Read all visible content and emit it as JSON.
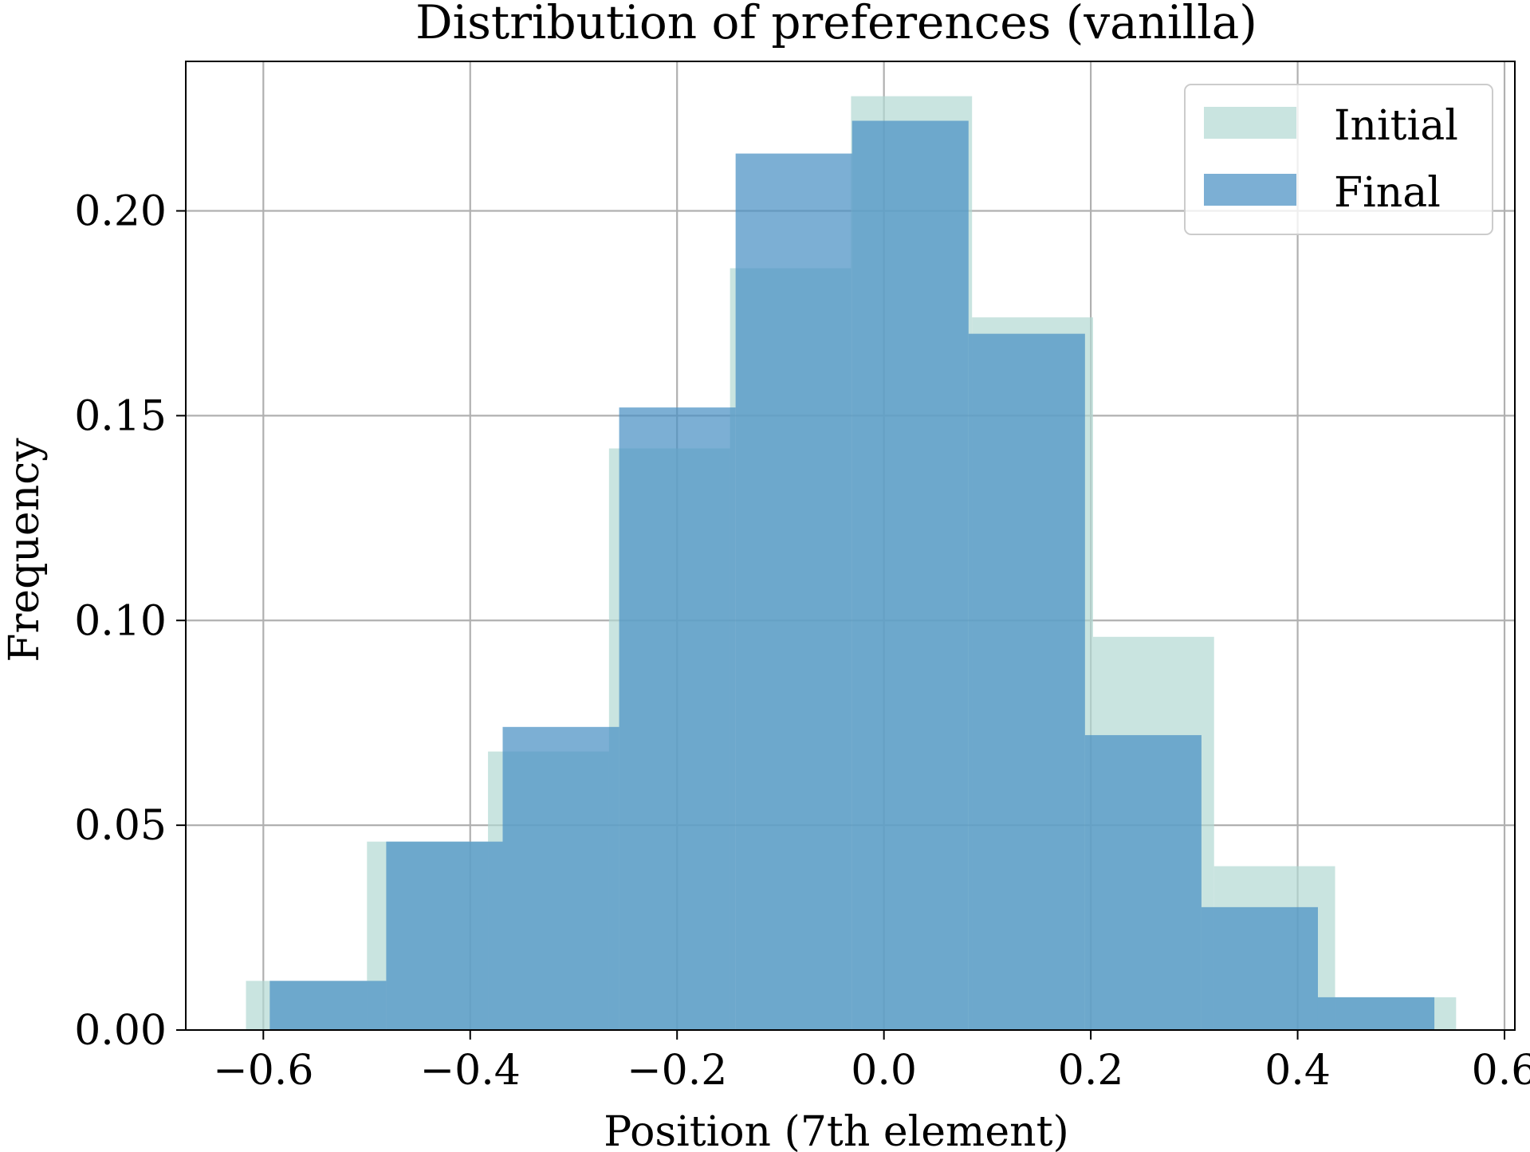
{
  "chart_data": {
    "type": "bar",
    "title": "Distribution of preferences (vanilla)",
    "xlabel": "Position (7th element)",
    "ylabel": "Frequency",
    "xlim": [
      -0.675,
      0.61
    ],
    "ylim": [
      0,
      0.2365
    ],
    "x_ticks": [
      -0.6,
      -0.4,
      -0.2,
      0.0,
      0.2,
      0.4,
      0.6
    ],
    "x_tick_labels": [
      "−0.6",
      "−0.4",
      "−0.2",
      "0.0",
      "0.2",
      "0.4",
      "0.6"
    ],
    "y_ticks": [
      0.0,
      0.05,
      0.1,
      0.15,
      0.2
    ],
    "y_tick_labels": [
      "0.00",
      "0.05",
      "0.10",
      "0.15",
      "0.20"
    ],
    "grid": true,
    "legend_position": "top-right",
    "series": [
      {
        "name": "Initial",
        "color": "#b2d8d3",
        "opacity": 0.7,
        "bin_edges": [
          -0.6168,
          -0.4998,
          -0.3828,
          -0.2658,
          -0.1488,
          -0.0318,
          0.0852,
          0.2022,
          0.3192,
          0.4362,
          0.5532
        ],
        "values": [
          0.012,
          0.046,
          0.068,
          0.142,
          0.186,
          0.228,
          0.174,
          0.096,
          0.04,
          0.008
        ]
      },
      {
        "name": "Final",
        "color": "#4a90c4",
        "opacity": 0.72,
        "bin_edges": [
          -0.5938,
          -0.4812,
          -0.3686,
          -0.256,
          -0.1434,
          -0.0308,
          0.0818,
          0.1944,
          0.307,
          0.4196,
          0.5322
        ],
        "values": [
          0.012,
          0.046,
          0.074,
          0.152,
          0.214,
          0.222,
          0.17,
          0.072,
          0.03,
          0.008
        ]
      }
    ]
  }
}
